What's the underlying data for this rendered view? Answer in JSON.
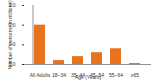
{
  "chart_data": {
    "type": "bar",
    "categories": [
      "All Adults",
      "18–34",
      "35–44",
      "45–54",
      "55–64",
      "≥65"
    ],
    "values": [
      2.0,
      0.2,
      0.4,
      0.6,
      0.8,
      0.05
    ],
    "color": "#e8731f",
    "xlabel": "Age (Years)",
    "ylabel": "Number of persons (in millions)",
    "ylim": [
      0,
      3
    ],
    "yticks": [
      0,
      1,
      2,
      3
    ],
    "grid": false
  }
}
